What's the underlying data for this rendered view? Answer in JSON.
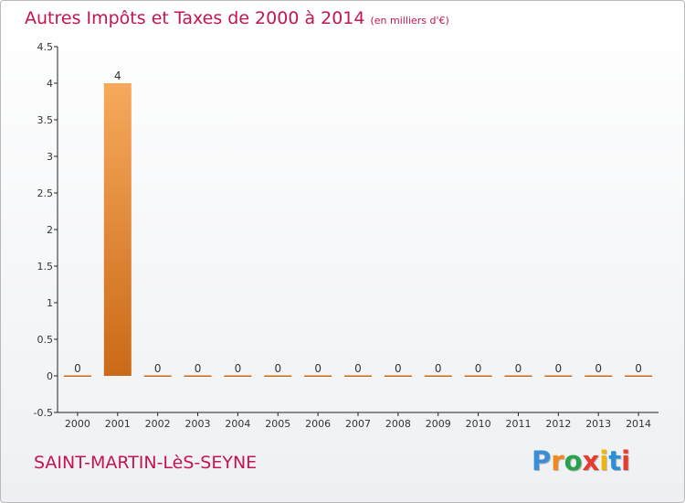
{
  "header": {
    "title": "Autres Impôts et Taxes de 2000 à 2014",
    "subtitle": "(en milliers d'€)"
  },
  "footer": {
    "commune": "SAINT-MARTIN-LèS-SEYNE",
    "brand": "Proxiti"
  },
  "colors": {
    "accent": "#c4154f",
    "bar_light": "#f7a95c",
    "bar_dark": "#c96a17",
    "axis": "#222222",
    "brand_letters": [
      "#3a8fd6",
      "#f08a1c",
      "#2aa24b",
      "#e63b2e",
      "#f2b40b",
      "#2a8fd6",
      "#e63b2e"
    ]
  },
  "chart_data": {
    "type": "bar",
    "categories": [
      "2000",
      "2001",
      "2002",
      "2003",
      "2004",
      "2005",
      "2006",
      "2007",
      "2008",
      "2009",
      "2010",
      "2011",
      "2012",
      "2013",
      "2014"
    ],
    "values": [
      0,
      4,
      0,
      0,
      0,
      0,
      0,
      0,
      0,
      0,
      0,
      0,
      0,
      0,
      0
    ],
    "data_labels": [
      "0",
      "4",
      "0",
      "0",
      "0",
      "0",
      "0",
      "0",
      "0",
      "0",
      "0",
      "0",
      "0",
      "0",
      "0"
    ],
    "ylim": [
      -0.5,
      4.5
    ],
    "yticks": [
      -0.5,
      0,
      0.5,
      1,
      1.5,
      2,
      2.5,
      3,
      3.5,
      4,
      4.5
    ],
    "ytick_labels": [
      "-0.5",
      "0",
      "0.5",
      "1",
      "1.5",
      "2",
      "2.5",
      "3",
      "3.5",
      "4",
      "4.5"
    ],
    "grid": false,
    "xlabel": "",
    "ylabel": ""
  }
}
